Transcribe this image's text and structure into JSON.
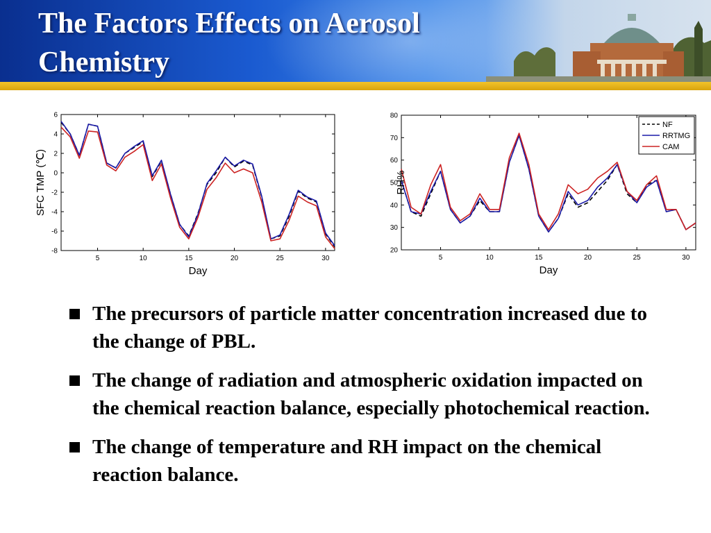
{
  "slide": {
    "title_lines": [
      "The Factors Effects on Aerosol",
      "Chemistry"
    ],
    "bullets": [
      "The precursors of particle matter concentration increased due to the change of PBL.",
      "The change of radiation and atmospheric oxidation impacted on the chemical reaction balance, especially photochemical reaction.",
      "The change of temperature and RH impact on the chemical reaction balance."
    ]
  },
  "chart_data": [
    {
      "type": "line",
      "title": "",
      "xlabel": "Day",
      "ylabel": "SFC TMP (℃)",
      "xlim": [
        1,
        31
      ],
      "ylim": [
        -8,
        6
      ],
      "xticks": [
        5,
        10,
        15,
        20,
        25,
        30
      ],
      "yticks": [
        -8,
        -6,
        -4,
        -2,
        0,
        2,
        4,
        6
      ],
      "grid": false,
      "x": [
        1,
        2,
        3,
        4,
        5,
        6,
        7,
        8,
        9,
        10,
        11,
        12,
        13,
        14,
        15,
        16,
        17,
        18,
        19,
        20,
        21,
        22,
        23,
        24,
        25,
        26,
        27,
        28,
        29,
        30,
        31
      ],
      "series": [
        {
          "name": "NF",
          "color": "#000000",
          "dash": "6,4",
          "values": [
            5.2,
            4.0,
            1.8,
            5.0,
            4.8,
            1.0,
            0.5,
            2.0,
            2.6,
            3.2,
            -0.4,
            1.2,
            -2.2,
            -5.3,
            -6.5,
            -4.2,
            -1.2,
            0.0,
            1.6,
            0.6,
            1.2,
            0.8,
            -2.5,
            -6.8,
            -6.5,
            -4.5,
            -1.9,
            -2.6,
            -3.0,
            -6.3,
            -7.6
          ]
        },
        {
          "name": "RRTMG",
          "color": "#1a1aa8",
          "dash": "",
          "values": [
            5.3,
            4.0,
            1.8,
            5.0,
            4.8,
            1.0,
            0.5,
            2.0,
            2.7,
            3.3,
            -0.3,
            1.3,
            -2.2,
            -5.3,
            -6.6,
            -4.3,
            -1.1,
            0.2,
            1.6,
            0.7,
            1.3,
            0.9,
            -2.4,
            -6.8,
            -6.4,
            -4.3,
            -1.8,
            -2.5,
            -2.9,
            -6.2,
            -7.5
          ]
        },
        {
          "name": "CAM",
          "color": "#cc2222",
          "dash": "",
          "values": [
            4.7,
            3.7,
            1.5,
            4.3,
            4.2,
            0.8,
            0.2,
            1.6,
            2.2,
            2.9,
            -0.8,
            0.9,
            -2.6,
            -5.6,
            -6.8,
            -4.6,
            -1.7,
            -0.5,
            1.0,
            0.0,
            0.4,
            0.0,
            -3.0,
            -7.0,
            -6.8,
            -4.9,
            -2.4,
            -3.0,
            -3.4,
            -6.6,
            -7.8
          ]
        }
      ]
    },
    {
      "type": "line",
      "title": "",
      "xlabel": "Day",
      "ylabel": "RH%",
      "xlim": [
        1,
        31
      ],
      "ylim": [
        20,
        80
      ],
      "xticks": [
        5,
        10,
        15,
        20,
        25,
        30
      ],
      "yticks": [
        20,
        30,
        40,
        50,
        60,
        70,
        80
      ],
      "grid": false,
      "legend": "top-right",
      "legend_labels": [
        "NF",
        "RRTMG",
        "CAM"
      ],
      "x": [
        1,
        2,
        3,
        4,
        5,
        6,
        7,
        8,
        9,
        10,
        11,
        12,
        13,
        14,
        15,
        16,
        17,
        18,
        19,
        20,
        21,
        22,
        23,
        24,
        25,
        26,
        27,
        28,
        29,
        30,
        31
      ],
      "series": [
        {
          "name": "NF",
          "color": "#000000",
          "dash": "6,4",
          "values": [
            51,
            37,
            35,
            45,
            55,
            38,
            32,
            35,
            42,
            37,
            37,
            59,
            71,
            56,
            35,
            28,
            34,
            45,
            39,
            41,
            46,
            51,
            58,
            45,
            41,
            49,
            51,
            37,
            38,
            29,
            32
          ]
        },
        {
          "name": "RRTMG",
          "color": "#1a1aa8",
          "dash": "",
          "values": [
            51,
            37,
            36,
            46,
            55,
            38,
            32,
            35,
            43,
            37,
            37,
            59,
            71,
            56,
            35,
            28,
            34,
            46,
            40,
            42,
            48,
            52,
            58,
            46,
            41,
            48,
            51,
            37,
            38,
            29,
            32
          ]
        },
        {
          "name": "CAM",
          "color": "#cc2222",
          "dash": "",
          "values": [
            56,
            39,
            36,
            49,
            58,
            39,
            33,
            36,
            45,
            38,
            38,
            61,
            72,
            58,
            36,
            29,
            36,
            49,
            45,
            47,
            52,
            55,
            59,
            46,
            42,
            49,
            53,
            38,
            38,
            29,
            32
          ]
        }
      ]
    }
  ]
}
